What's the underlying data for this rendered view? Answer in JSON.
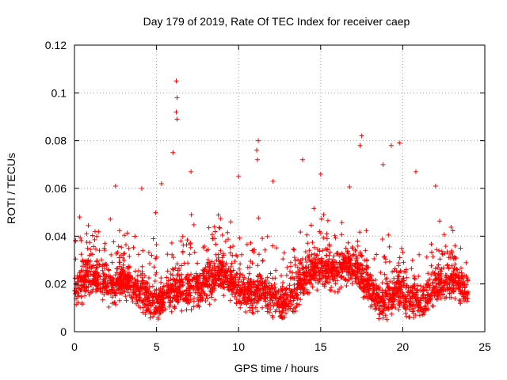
{
  "chart_data": {
    "type": "scatter",
    "title": "Day 179 of 2019, Rate Of TEC Index for receiver caep",
    "xlabel": "GPS time / hours",
    "ylabel": "ROTI / TECUs",
    "xlim": [
      0,
      25
    ],
    "ylim": [
      0,
      0.12
    ],
    "x_ticks": [
      0,
      5,
      10,
      15,
      20,
      25
    ],
    "y_ticks": [
      0,
      0.02,
      0.04,
      0.06,
      0.08,
      0.1,
      0.12
    ],
    "x_tick_labels": [
      "0",
      "5",
      "10",
      "15",
      "20",
      "25"
    ],
    "y_tick_labels": [
      "0",
      "0.02",
      "0.04",
      "0.06",
      "0.08",
      "0.1",
      "0.12"
    ],
    "grid": true,
    "marker": "plus",
    "series": [
      {
        "name": "ROTI",
        "color": "#ff0000",
        "x_range_hours": [
          0,
          24
        ],
        "median_value": 0.018,
        "typical_band": [
          0.008,
          0.035
        ],
        "notable_points": [
          {
            "x": 6.2,
            "y": 0.105
          },
          {
            "x": 6.25,
            "y": 0.098
          },
          {
            "x": 6.2,
            "y": 0.092
          },
          {
            "x": 6.25,
            "y": 0.089
          },
          {
            "x": 17.5,
            "y": 0.082
          },
          {
            "x": 11.2,
            "y": 0.08
          },
          {
            "x": 19.8,
            "y": 0.079
          },
          {
            "x": 17.4,
            "y": 0.078
          },
          {
            "x": 19.3,
            "y": 0.078
          },
          {
            "x": 11.1,
            "y": 0.076
          },
          {
            "x": 6.0,
            "y": 0.075
          },
          {
            "x": 11.15,
            "y": 0.072
          },
          {
            "x": 13.9,
            "y": 0.072
          },
          {
            "x": 18.8,
            "y": 0.07
          },
          {
            "x": 20.8,
            "y": 0.067
          },
          {
            "x": 7.1,
            "y": 0.067
          },
          {
            "x": 15.0,
            "y": 0.066
          },
          {
            "x": 10.0,
            "y": 0.065
          },
          {
            "x": 12.1,
            "y": 0.063
          },
          {
            "x": 2.5,
            "y": 0.061
          },
          {
            "x": 22.0,
            "y": 0.061
          },
          {
            "x": 4.1,
            "y": 0.06
          },
          {
            "x": 5.3,
            "y": 0.062
          }
        ]
      }
    ]
  }
}
